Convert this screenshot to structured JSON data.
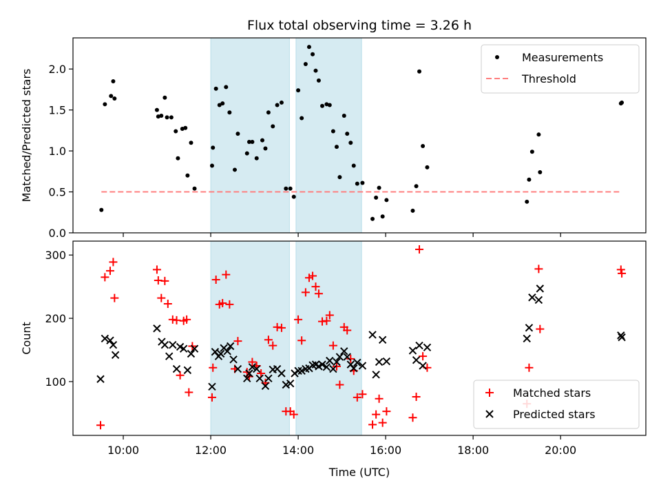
{
  "title": "Flux total observing time = 3.26 h",
  "colors": {
    "measurement": "#000000",
    "threshold": "#ff7f7f",
    "matched": "#ff0000",
    "predicted": "#000000",
    "shade": "#add8e6"
  },
  "chart_data": [
    {
      "type": "scatter",
      "title": "Flux total observing time = 3.26 h",
      "ylabel": "Matched/Predicted stars",
      "xlabel": "",
      "xlim": [
        8.85,
        21.95
      ],
      "ylim": [
        0,
        2.38
      ],
      "yticks": [
        0.0,
        0.5,
        1.0,
        1.5,
        2.0
      ],
      "ytick_labels": [
        "0.0",
        "0.5",
        "1.0",
        "1.5",
        "2.0"
      ],
      "xticks": [
        10,
        12,
        14,
        16,
        18,
        20
      ],
      "shaded_spans": [
        [
          12.0,
          13.8
        ],
        [
          13.95,
          15.45
        ]
      ],
      "legend": [
        "Measurements",
        "Threshold"
      ],
      "legend_position": "upper right",
      "threshold": {
        "name": "Threshold",
        "y": 0.5,
        "x": [
          9.5,
          21.4
        ]
      },
      "series": [
        {
          "name": "Measurements",
          "x": [
            9.5,
            9.58,
            9.72,
            9.77,
            9.8,
            10.77,
            10.8,
            10.87,
            10.95,
            11.0,
            11.1,
            11.2,
            11.25,
            11.35,
            11.42,
            11.47,
            11.55,
            11.63,
            12.03,
            12.05,
            12.12,
            12.2,
            12.27,
            12.35,
            12.43,
            12.55,
            12.62,
            12.83,
            12.88,
            12.95,
            13.05,
            13.18,
            13.25,
            13.32,
            13.42,
            13.52,
            13.62,
            13.72,
            13.82,
            13.9,
            14.0,
            14.08,
            14.17,
            14.25,
            14.33,
            14.4,
            14.47,
            14.55,
            14.65,
            14.72,
            14.8,
            14.88,
            14.95,
            15.05,
            15.12,
            15.2,
            15.27,
            15.35,
            15.47,
            15.7,
            15.78,
            15.85,
            15.93,
            16.02,
            16.62,
            16.7,
            16.77,
            16.85,
            16.95,
            19.23,
            19.28,
            19.35,
            19.5,
            19.53,
            21.38,
            21.4
          ],
          "y": [
            0.28,
            1.57,
            1.67,
            1.85,
            1.64,
            1.5,
            1.42,
            1.43,
            1.65,
            1.41,
            1.41,
            1.24,
            0.91,
            1.27,
            1.28,
            0.7,
            1.1,
            0.54,
            0.82,
            1.04,
            1.76,
            1.56,
            1.58,
            1.78,
            1.47,
            0.77,
            1.21,
            0.97,
            1.11,
            1.11,
            0.91,
            1.13,
            1.03,
            1.47,
            1.3,
            1.56,
            1.59,
            0.54,
            0.54,
            0.44,
            1.74,
            1.4,
            2.06,
            2.27,
            2.18,
            1.98,
            1.86,
            1.55,
            1.57,
            1.56,
            1.24,
            1.05,
            0.68,
            1.43,
            1.21,
            1.1,
            0.82,
            0.6,
            0.61,
            0.17,
            0.43,
            0.55,
            0.2,
            0.4,
            0.27,
            0.57,
            1.97,
            1.06,
            0.8,
            0.38,
            0.65,
            0.99,
            1.2,
            0.74,
            1.58,
            1.59
          ]
        }
      ]
    },
    {
      "type": "scatter",
      "title": "",
      "ylabel": "Count",
      "xlabel": "Time (UTC)",
      "xlim": [
        8.85,
        21.95
      ],
      "ylim": [
        15,
        322
      ],
      "yticks": [
        100,
        200,
        300
      ],
      "ytick_labels": [
        "100",
        "200",
        "300"
      ],
      "xticks": [
        10,
        12,
        14,
        16,
        18,
        20
      ],
      "xtick_labels": [
        "10:00",
        "12:00",
        "14:00",
        "16:00",
        "18:00",
        "20:00"
      ],
      "shaded_spans": [
        [
          12.0,
          13.8
        ],
        [
          13.95,
          15.45
        ]
      ],
      "legend": [
        "Matched stars",
        "Predicted stars"
      ],
      "legend_position": "lower right",
      "series": [
        {
          "name": "Matched stars",
          "marker": "plus",
          "x": [
            9.48,
            9.58,
            9.7,
            9.77,
            9.8,
            10.77,
            10.8,
            10.87,
            10.95,
            11.02,
            11.13,
            11.22,
            11.3,
            11.38,
            11.45,
            11.5,
            11.58,
            12.03,
            12.05,
            12.12,
            12.2,
            12.27,
            12.35,
            12.43,
            12.55,
            12.62,
            12.83,
            12.88,
            12.95,
            13.05,
            13.15,
            13.25,
            13.32,
            13.42,
            13.52,
            13.62,
            13.72,
            13.82,
            13.9,
            14.0,
            14.08,
            14.17,
            14.25,
            14.33,
            14.4,
            14.47,
            14.55,
            14.65,
            14.72,
            14.8,
            14.88,
            14.95,
            15.05,
            15.12,
            15.2,
            15.27,
            15.35,
            15.47,
            15.7,
            15.78,
            15.85,
            15.93,
            16.02,
            16.62,
            16.7,
            16.77,
            16.85,
            16.95,
            19.23,
            19.28,
            19.5,
            19.53,
            21.38,
            21.4
          ],
          "y": [
            31,
            265,
            275,
            289,
            232,
            277,
            260,
            232,
            259,
            223,
            198,
            197,
            110,
            196,
            198,
            83,
            156,
            75,
            122,
            261,
            222,
            224,
            269,
            222,
            120,
            164,
            115,
            108,
            131,
            125,
            113,
            98,
            166,
            157,
            186,
            185,
            53,
            53,
            48,
            198,
            165,
            241,
            264,
            267,
            250,
            239,
            195,
            196,
            205,
            157,
            124,
            95,
            186,
            181,
            136,
            117,
            75,
            80,
            32,
            48,
            73,
            35,
            53,
            43,
            76,
            309,
            140,
            122,
            65,
            122,
            278,
            183,
            277,
            271
          ]
        },
        {
          "name": "Predicted stars",
          "marker": "x",
          "x": [
            9.48,
            9.58,
            9.7,
            9.77,
            9.82,
            10.77,
            10.88,
            10.95,
            11.05,
            11.13,
            11.22,
            11.3,
            11.38,
            11.47,
            11.55,
            11.63,
            12.03,
            12.1,
            12.18,
            12.23,
            12.3,
            12.38,
            12.45,
            12.52,
            12.62,
            12.83,
            12.88,
            12.95,
            13.05,
            13.12,
            13.25,
            13.32,
            13.42,
            13.52,
            13.62,
            13.72,
            13.82,
            13.92,
            14.0,
            14.08,
            14.17,
            14.25,
            14.33,
            14.4,
            14.47,
            14.55,
            14.65,
            14.72,
            14.8,
            14.88,
            14.95,
            15.05,
            15.12,
            15.2,
            15.27,
            15.35,
            15.47,
            15.7,
            15.78,
            15.85,
            15.93,
            16.02,
            16.62,
            16.7,
            16.77,
            16.85,
            16.95,
            19.23,
            19.28,
            19.35,
            19.5,
            19.53,
            21.38,
            21.4
          ],
          "y": [
            104,
            168,
            165,
            158,
            142,
            184,
            163,
            158,
            140,
            158,
            120,
            155,
            152,
            118,
            144,
            152,
            92,
            147,
            140,
            144,
            153,
            148,
            156,
            135,
            120,
            105,
            113,
            123,
            120,
            105,
            93,
            105,
            119,
            120,
            113,
            95,
            97,
            113,
            117,
            117,
            120,
            121,
            126,
            127,
            124,
            127,
            123,
            133,
            120,
            131,
            139,
            148,
            139,
            127,
            121,
            130,
            125,
            174,
            111,
            131,
            166,
            132,
            149,
            134,
            157,
            125,
            154,
            168,
            185,
            233,
            229,
            247,
            173,
            170
          ]
        }
      ]
    }
  ]
}
